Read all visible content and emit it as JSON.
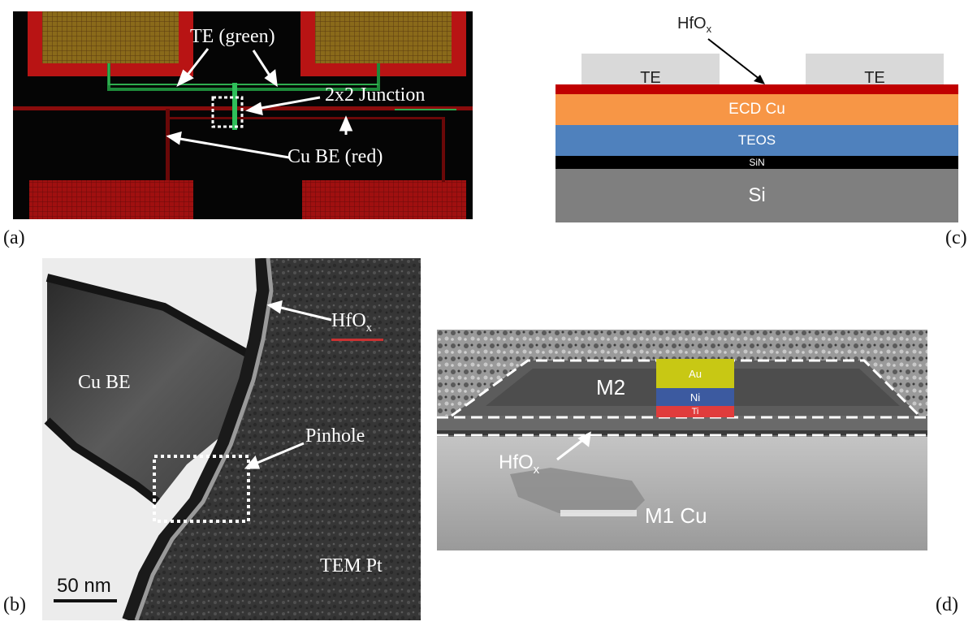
{
  "panels": {
    "a": {
      "label": "(a)",
      "te_label": "TE (green)",
      "junction_label": "2x2 Junction",
      "be_label": "Cu BE (red)"
    },
    "b": {
      "label": "(b)",
      "hfox_label": "HfO",
      "hfox_sub": "x",
      "cube_label": "Cu BE",
      "pinhole_label": "Pinhole",
      "pt_label": "TEM Pt",
      "scale_label": "50 nm"
    },
    "c": {
      "label": "(c)",
      "hfox_label": "HfO",
      "hfox_sub": "x",
      "te_left": "TE",
      "te_right": "TE",
      "ecd_label": "ECD Cu",
      "teos_label": "TEOS",
      "sin_label": "SiN",
      "si_label": "Si",
      "colors": {
        "hfox": "#c00000",
        "ecd": "#f79646",
        "teos": "#4f81bd",
        "sin": "#000000",
        "si": "#7f7f7f",
        "te": "#d9d9d9"
      }
    },
    "d": {
      "label": "(d)",
      "m2_label": "M2",
      "au_label": "Au",
      "ni_label": "Ni",
      "ti_label": "Ti",
      "hfox_label": "HfO",
      "hfox_sub": "x",
      "m1_label": "M1 Cu"
    }
  }
}
